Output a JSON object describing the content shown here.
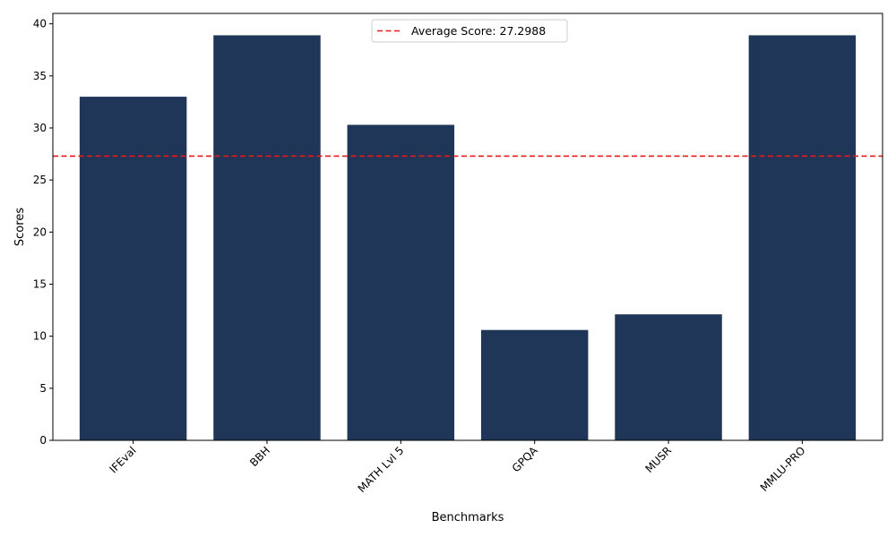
{
  "chart_data": {
    "type": "bar",
    "title": "",
    "xlabel": "Benchmarks",
    "ylabel": "Scores",
    "categories": [
      "IFEval",
      "BBH",
      "MATH Lvl 5",
      "GPQA",
      "MUSR",
      "MMLU-PRO"
    ],
    "values": [
      33.0,
      38.9,
      30.3,
      10.6,
      12.1,
      38.9
    ],
    "ylim": [
      0,
      41
    ],
    "yticks": [
      0,
      5,
      10,
      15,
      20,
      25,
      30,
      35,
      40
    ],
    "bar_color": "#1f3658",
    "reference_line": {
      "value": 27.2988,
      "color": "#e8191a",
      "style": "dashed",
      "legend_label": "Average Score: 27.2988"
    },
    "legend_position": "top-center",
    "grid": false,
    "xtick_rotation": 45
  }
}
